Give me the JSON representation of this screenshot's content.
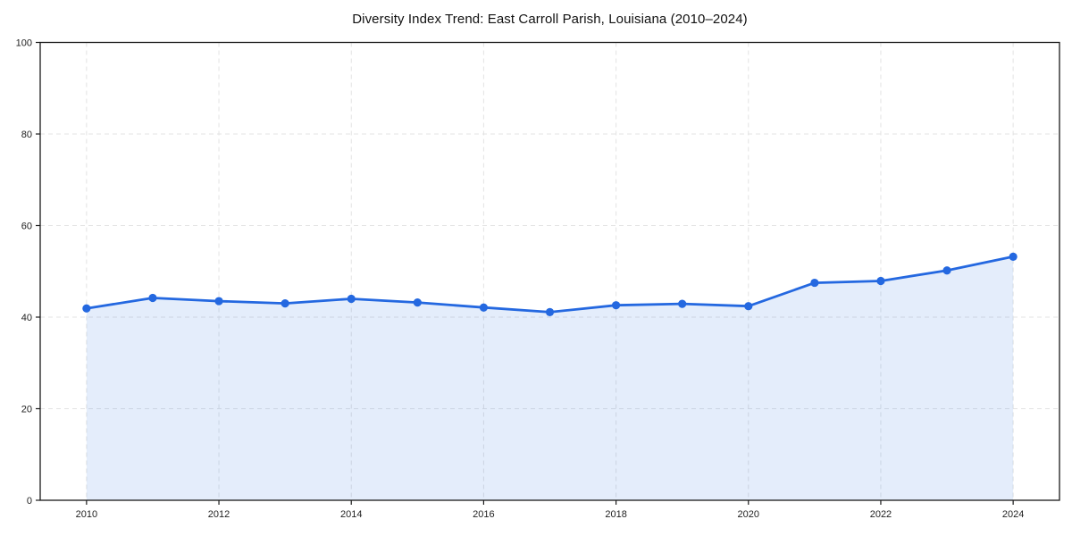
{
  "page": {
    "background_color": "#ffffff"
  },
  "chart_data": {
    "type": "area",
    "title": "Diversity Index Trend: East Carroll Parish, Louisiana (2010–2024)",
    "xlabel": "",
    "ylabel": "",
    "x": [
      2010,
      2011,
      2012,
      2013,
      2014,
      2015,
      2016,
      2017,
      2018,
      2019,
      2020,
      2021,
      2022,
      2023,
      2024
    ],
    "series": [
      {
        "name": "Diversity Index",
        "values": [
          41.9,
          44.2,
          43.5,
          43.0,
          44.0,
          43.2,
          42.1,
          41.1,
          42.6,
          42.9,
          42.4,
          47.5,
          47.9,
          50.2,
          53.2
        ]
      }
    ],
    "xlim": [
      2009.3,
      2024.7
    ],
    "ylim": [
      0,
      100
    ],
    "xticks": [
      2010,
      2012,
      2014,
      2016,
      2018,
      2020,
      2022,
      2024
    ],
    "yticks": [
      0,
      20,
      40,
      60,
      80,
      100
    ],
    "grid": "dashed",
    "grid_lines_vertical_at": [
      2010,
      2012,
      2014,
      2016,
      2018,
      2020,
      2022,
      2024
    ],
    "grid_lines_horizontal_at": [
      20,
      40,
      60,
      80
    ],
    "legend": "none",
    "marker": "circle",
    "colors": {
      "line": "#2468e0",
      "marker": "#2468e0",
      "area_fill": "rgba(36, 104, 224, 0.12)",
      "grid": "#e3e3e3",
      "axis_border": "#1a1a1a",
      "tick_label": "#222222",
      "title": "#111111"
    }
  }
}
